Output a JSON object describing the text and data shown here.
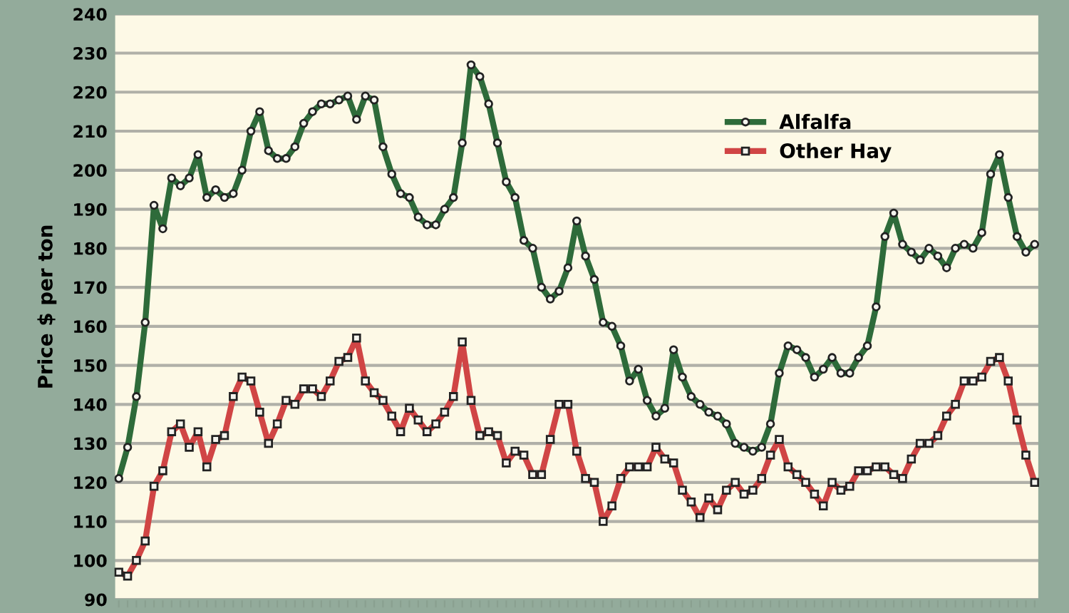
{
  "chart_data": {
    "type": "line",
    "ylabel": "Price $ per ton",
    "categories": [
      null,
      null,
      null,
      null,
      null,
      null,
      null,
      null,
      null,
      null,
      null,
      null,
      null,
      null,
      null,
      null,
      null,
      null,
      null,
      null,
      null,
      null,
      null,
      null,
      null,
      null,
      null,
      null,
      null,
      null,
      null,
      null,
      null,
      null,
      null,
      null,
      null,
      null,
      null,
      null,
      null,
      null,
      null,
      null,
      null,
      null,
      null,
      null,
      null,
      null,
      null,
      null,
      null,
      null,
      null,
      null,
      null,
      null,
      null,
      null,
      null,
      null,
      null,
      null,
      null,
      null,
      null,
      null,
      null,
      null,
      null,
      null,
      null,
      null,
      null,
      null,
      null,
      null,
      null,
      null,
      null,
      null,
      null,
      null,
      null,
      null,
      null,
      null,
      null,
      null,
      null,
      null,
      null,
      null,
      null,
      null,
      null,
      null,
      null,
      null,
      null,
      null,
      null,
      null,
      null
    ],
    "series": [
      {
        "name": "Alfalfa",
        "color": "#2e6b3a",
        "marker": "circle",
        "values": [
          121,
          129,
          142,
          161,
          191,
          185,
          198,
          196,
          198,
          204,
          193,
          195,
          193,
          194,
          200,
          210,
          215,
          205,
          203,
          203,
          206,
          212,
          215,
          217,
          217,
          218,
          219,
          213,
          219,
          218,
          206,
          199,
          194,
          193,
          188,
          186,
          186,
          190,
          193,
          207,
          227,
          224,
          217,
          207,
          197,
          193,
          182,
          180,
          170,
          167,
          169,
          175,
          187,
          178,
          172,
          161,
          160,
          155,
          146,
          149,
          141,
          137,
          139,
          154,
          147,
          142,
          140,
          138,
          137,
          135,
          130,
          129,
          128,
          129,
          135,
          148,
          155,
          154,
          152,
          147,
          149,
          152,
          148,
          148,
          152,
          155,
          165,
          183,
          189,
          181,
          179,
          177,
          180,
          178,
          175,
          180,
          181,
          180,
          184,
          199,
          204,
          193,
          183,
          179,
          181
        ]
      },
      {
        "name": "Other Hay",
        "color": "#d04545",
        "marker": "square",
        "values": [
          97,
          96,
          100,
          105,
          119,
          123,
          133,
          135,
          129,
          133,
          124,
          131,
          132,
          142,
          147,
          146,
          138,
          130,
          135,
          141,
          140,
          144,
          144,
          142,
          146,
          151,
          152,
          157,
          146,
          143,
          141,
          137,
          133,
          139,
          136,
          133,
          135,
          138,
          142,
          156,
          141,
          132,
          133,
          132,
          125,
          128,
          127,
          122,
          122,
          131,
          140,
          140,
          128,
          121,
          120,
          110,
          114,
          121,
          124,
          124,
          124,
          129,
          126,
          125,
          118,
          115,
          111,
          116,
          113,
          118,
          120,
          117,
          118,
          121,
          127,
          131,
          124,
          122,
          120,
          117,
          114,
          120,
          118,
          119,
          123,
          123,
          124,
          124,
          122,
          121,
          126,
          130,
          130,
          132,
          137,
          140,
          146,
          146,
          147,
          151,
          152,
          146,
          136,
          127,
          120
        ]
      }
    ],
    "ylim": [
      90,
      240
    ],
    "yticks": [
      90,
      100,
      110,
      120,
      130,
      140,
      150,
      160,
      170,
      180,
      190,
      200,
      210,
      220,
      230,
      240
    ],
    "grid": "y",
    "legend": "top right"
  }
}
